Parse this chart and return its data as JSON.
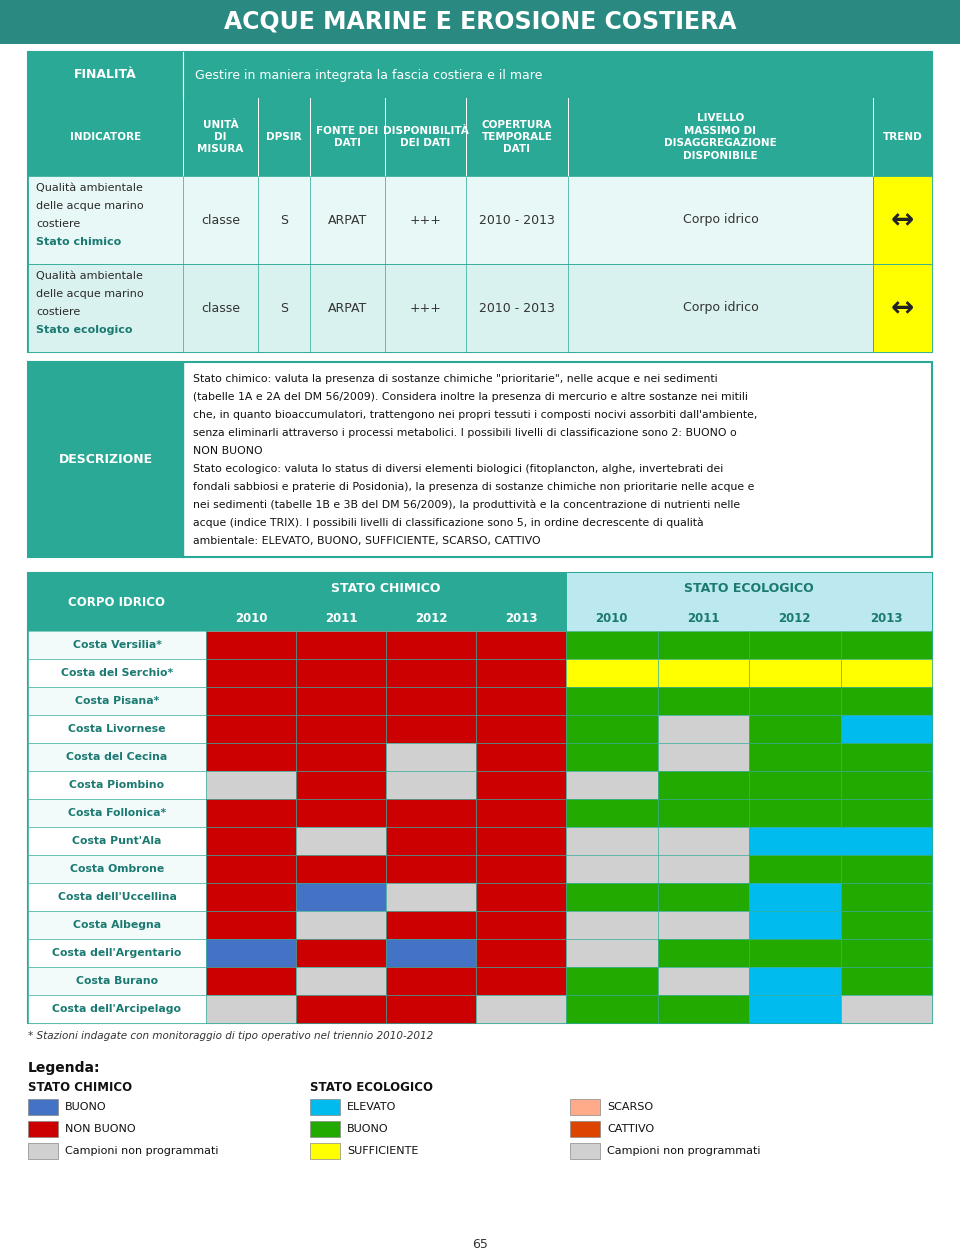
{
  "title": "ACQUE MARINE E EROSIONE COSTIERA",
  "title_bg": "#2a8a82",
  "teal_dark": "#1a7a72",
  "teal_medium": "#2aaa96",
  "teal_header": "#2aaa96",
  "light_cell": "#e0f5f3",
  "finalita_text": "Gestire in maniera integrata la fascia costiera e il mare",
  "indicatore_rows": [
    {
      "label_lines": [
        "Qualità ambientale",
        "delle acque marino",
        "costiere",
        "Stato chimico"
      ],
      "label_bold": [
        false,
        false,
        false,
        true
      ],
      "unita": "classe",
      "dpsir": "S",
      "fonte": "ARPAT",
      "disp": "+++",
      "copertura": "2010 - 2013",
      "livello": "Corpo idrico",
      "trend": "↔"
    },
    {
      "label_lines": [
        "Qualità ambientale",
        "delle acque marino",
        "costiere",
        "Stato ecologico"
      ],
      "label_bold": [
        false,
        false,
        false,
        true
      ],
      "unita": "classe",
      "dpsir": "S",
      "fonte": "ARPAT",
      "disp": "+++",
      "copertura": "2010 - 2013",
      "livello": "Corpo idrico",
      "trend": "↔"
    }
  ],
  "corpo_idrico_rows": [
    "Costa Versilia*",
    "Costa del Serchio*",
    "Costa Pisana*",
    "Costa Livornese",
    "Costa del Cecina",
    "Costa Piombino",
    "Costa Follonica*",
    "Costa Punt'Ala",
    "Costa Ombrone",
    "Costa dell'Uccellina",
    "Costa Albegna",
    "Costa dell'Argentario",
    "Costa Burano",
    "Costa dell'Arcipelago"
  ],
  "stato_chimico": {
    "2010": [
      "R",
      "R",
      "R",
      "R",
      "R",
      "W",
      "R",
      "R",
      "R",
      "R",
      "R",
      "B",
      "R",
      "W"
    ],
    "2011": [
      "R",
      "R",
      "R",
      "R",
      "R",
      "R",
      "R",
      "W",
      "R",
      "B",
      "W",
      "R",
      "W",
      "R"
    ],
    "2012": [
      "R",
      "R",
      "R",
      "R",
      "W",
      "W",
      "R",
      "R",
      "R",
      "W",
      "R",
      "B",
      "R",
      "R"
    ],
    "2013": [
      "R",
      "R",
      "R",
      "R",
      "R",
      "R",
      "R",
      "R",
      "R",
      "R",
      "R",
      "R",
      "R",
      "W"
    ]
  },
  "stato_ecologico": {
    "2010": [
      "G",
      "Y",
      "G",
      "G",
      "G",
      "W",
      "G",
      "W",
      "W",
      "G",
      "W",
      "W",
      "G",
      "G"
    ],
    "2011": [
      "G",
      "Y",
      "G",
      "W",
      "W",
      "G",
      "G",
      "W",
      "W",
      "G",
      "W",
      "G",
      "W",
      "G"
    ],
    "2012": [
      "G",
      "Y",
      "G",
      "G",
      "G",
      "G",
      "G",
      "C",
      "G",
      "C",
      "C",
      "G",
      "C",
      "C"
    ],
    "2013": [
      "G",
      "Y",
      "G",
      "C",
      "G",
      "G",
      "G",
      "C",
      "G",
      "G",
      "G",
      "G",
      "G",
      "W"
    ]
  },
  "color_map": {
    "R": "#cc0000",
    "B": "#4472c4",
    "G": "#22aa00",
    "Y": "#ffff00",
    "C": "#00bbee",
    "O": "#ffaa88",
    "W": "#d0d0d0",
    "N": "none"
  },
  "footnote": "* Stazioni indagate con monitoraggio di tipo operativo nel triennio 2010-2012",
  "page_number": "65"
}
